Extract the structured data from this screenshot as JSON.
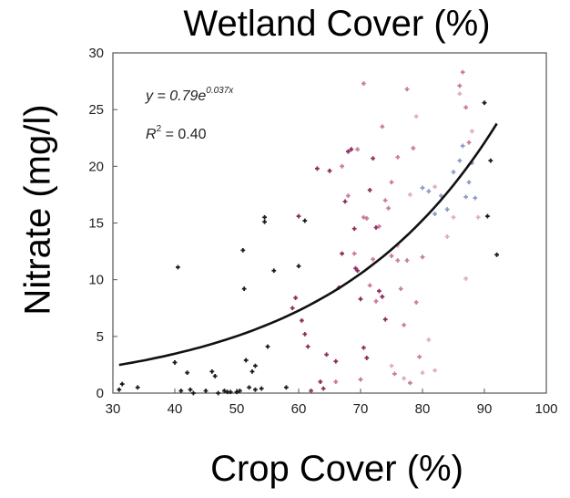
{
  "chart_data": {
    "type": "scatter",
    "title": "Wetland Cover (%)",
    "xlabel": "Crop Cover (%)",
    "ylabel": "Nitrate (mg/l)",
    "xlim": [
      30,
      100
    ],
    "ylim": [
      0,
      30
    ],
    "xticks": [
      "30",
      "40",
      "50",
      "60",
      "70",
      "80",
      "90",
      "100"
    ],
    "yticks": [
      "0",
      "5",
      "10",
      "15",
      "20",
      "25",
      "30"
    ],
    "grid": false,
    "equation": {
      "y_prefix": "y = 0.79e",
      "exponent": "0.037x",
      "r2_prefix": "R",
      "r2_power": "2",
      "r2_suffix": " = 0.40"
    },
    "fit": {
      "type": "exponential",
      "a": 0.79,
      "b": 0.037,
      "x_range": [
        31,
        92
      ]
    },
    "colors": {
      "dark": "#1a1a1a",
      "magenta": "#8b2c5e",
      "pink": "#c9789f",
      "lightpink": "#e2aac2",
      "blue": "#8b9cc4",
      "curve": "#111111"
    },
    "series": [
      {
        "color": "dark",
        "points": [
          [
            31,
            0.3
          ],
          [
            31.5,
            0.8
          ],
          [
            34,
            0.5
          ],
          [
            40,
            2.7
          ],
          [
            40.5,
            11.1
          ],
          [
            41,
            0.2
          ],
          [
            42,
            1.8
          ],
          [
            42.5,
            0.3
          ],
          [
            43,
            0
          ],
          [
            45,
            0.2
          ],
          [
            46,
            1.9
          ],
          [
            46.5,
            1.5
          ],
          [
            47,
            0
          ],
          [
            48,
            0.2
          ],
          [
            48.5,
            0.1
          ],
          [
            49,
            0.1
          ],
          [
            50,
            0.1
          ],
          [
            50.5,
            0.2
          ],
          [
            51,
            12.6
          ],
          [
            51.2,
            9.2
          ],
          [
            51.5,
            2.9
          ],
          [
            52,
            0.5
          ],
          [
            52.5,
            1.9
          ],
          [
            53,
            2.4
          ],
          [
            53,
            0.3
          ],
          [
            54,
            0.4
          ],
          [
            54.5,
            15.1
          ],
          [
            54.5,
            15.5
          ],
          [
            55,
            4.1
          ],
          [
            56,
            10.8
          ],
          [
            58,
            0.5
          ],
          [
            60,
            11.2
          ],
          [
            61,
            15.2
          ],
          [
            90,
            25.6
          ],
          [
            90.5,
            15.6
          ],
          [
            91,
            20.5
          ],
          [
            92,
            12.2
          ]
        ]
      },
      {
        "color": "magenta",
        "points": [
          [
            59,
            7.5
          ],
          [
            59.5,
            8.4
          ],
          [
            60,
            15.6
          ],
          [
            60.5,
            6.4
          ],
          [
            61,
            5.2
          ],
          [
            61.5,
            4.1
          ],
          [
            62,
            0.2
          ],
          [
            63,
            19.8
          ],
          [
            63.5,
            1
          ],
          [
            64,
            0.4
          ],
          [
            64.5,
            3.4
          ],
          [
            65,
            19.6
          ],
          [
            66,
            2.8
          ],
          [
            66.5,
            9.3
          ],
          [
            67,
            12.3
          ],
          [
            67.5,
            16.9
          ],
          [
            68,
            21.3
          ],
          [
            68.5,
            21.5
          ],
          [
            69,
            14.5
          ],
          [
            69.2,
            11
          ],
          [
            69.5,
            10.8
          ],
          [
            70,
            8.3
          ],
          [
            70.5,
            4
          ],
          [
            71,
            3.1
          ],
          [
            71.5,
            17.9
          ],
          [
            72,
            20.7
          ],
          [
            72.5,
            14.6
          ],
          [
            73,
            9
          ],
          [
            73.5,
            8.5
          ],
          [
            74,
            6.5
          ]
        ]
      },
      {
        "color": "pink",
        "points": [
          [
            66,
            1
          ],
          [
            67,
            20
          ],
          [
            68,
            17.4
          ],
          [
            69,
            12.3
          ],
          [
            69.5,
            21.5
          ],
          [
            70,
            1.2
          ],
          [
            70.5,
            15.5
          ],
          [
            71,
            15.4
          ],
          [
            71.5,
            9.5
          ],
          [
            72,
            11.8
          ],
          [
            72.5,
            8.1
          ],
          [
            73,
            14.7
          ],
          [
            73.5,
            23.5
          ],
          [
            74,
            17
          ],
          [
            74.5,
            16.3
          ],
          [
            75,
            18.6
          ],
          [
            75,
            12.1
          ],
          [
            75.5,
            1.7
          ],
          [
            76,
            11.7
          ],
          [
            76,
            20.8
          ],
          [
            76.5,
            9.2
          ],
          [
            77,
            6
          ],
          [
            77.5,
            11.7
          ],
          [
            78,
            0.9
          ],
          [
            78.5,
            21.6
          ],
          [
            79,
            8
          ],
          [
            79.5,
            3.2
          ],
          [
            80,
            12
          ],
          [
            70.5,
            27.3
          ],
          [
            77.5,
            26.8
          ],
          [
            86,
            27.1
          ],
          [
            86.5,
            28.3
          ],
          [
            87,
            25.2
          ],
          [
            87.5,
            22.1
          ]
        ]
      },
      {
        "color": "lightpink",
        "points": [
          [
            75,
            2.4
          ],
          [
            76,
            13
          ],
          [
            77,
            1.3
          ],
          [
            78,
            17.5
          ],
          [
            79,
            24.4
          ],
          [
            80,
            1.8
          ],
          [
            81,
            4.7
          ],
          [
            82,
            2
          ],
          [
            84,
            13.8
          ],
          [
            85,
            15.5
          ],
          [
            86,
            26.4
          ],
          [
            87,
            10.1
          ],
          [
            88,
            23.1
          ],
          [
            89,
            15.5
          ],
          [
            82,
            18.2
          ]
        ]
      },
      {
        "color": "blue",
        "points": [
          [
            80,
            18.1
          ],
          [
            81,
            17.8
          ],
          [
            82,
            15.8
          ],
          [
            83,
            17.4
          ],
          [
            84,
            16.2
          ],
          [
            85,
            19.5
          ],
          [
            86,
            20.5
          ],
          [
            86.5,
            21.8
          ],
          [
            87,
            17.3
          ],
          [
            87.5,
            18.6
          ],
          [
            88,
            20.3
          ],
          [
            88.5,
            17.2
          ]
        ]
      }
    ]
  }
}
